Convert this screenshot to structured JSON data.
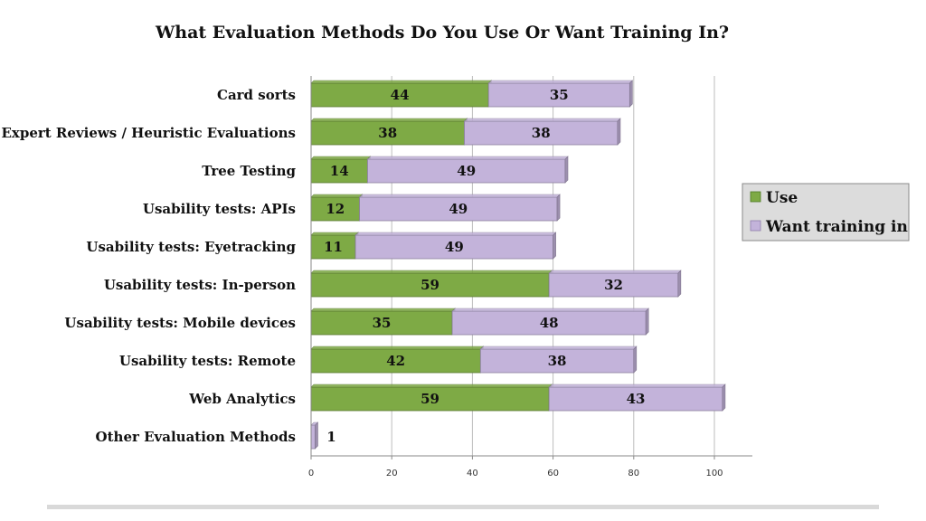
{
  "chart_data": {
    "type": "bar",
    "orientation": "horizontal",
    "stacked": true,
    "title": "What Evaluation Methods Do You Use Or Want Training In?",
    "categories": [
      "Card sorts",
      "Expert Reviews / Heuristic Evaluations",
      "Tree Testing",
      "Usability tests: APIs",
      "Usability tests: Eyetracking",
      "Usability tests: In-person",
      "Usability tests: Mobile devices",
      "Usability tests: Remote",
      "Web Analytics",
      "Other Evaluation Methods"
    ],
    "series": [
      {
        "name": "Use",
        "color": "#7eaa45",
        "values": [
          44,
          38,
          14,
          12,
          11,
          59,
          35,
          42,
          59,
          0
        ]
      },
      {
        "name": "Want training in",
        "color": "#c3b3da",
        "values": [
          35,
          38,
          49,
          49,
          49,
          32,
          48,
          38,
          43,
          1
        ]
      }
    ],
    "xlim": [
      0,
      110
    ],
    "xticks": [
      "0",
      "20",
      "40",
      "60",
      "80",
      "100"
    ],
    "grid": true,
    "legend": "right"
  }
}
